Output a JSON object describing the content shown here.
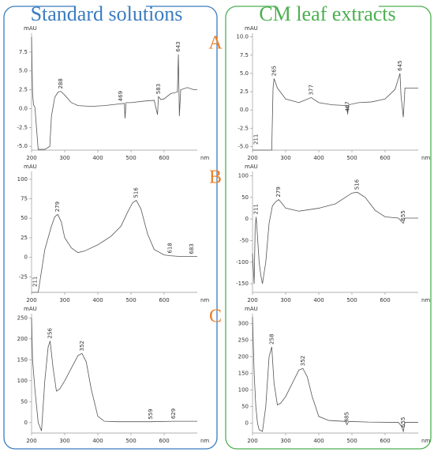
{
  "columns": [
    "Standard solutions",
    "CM leaf extracts"
  ],
  "rows": [
    "A",
    "B",
    "C"
  ],
  "chart_data": [
    {
      "type": "line",
      "y_label": "mAU",
      "x_label": "nm",
      "xlim": [
        200,
        700
      ],
      "ylim": [
        -5.5,
        10
      ],
      "xticks": [
        200,
        300,
        400,
        500,
        600
      ],
      "yticks": [
        {
          "value": -5,
          "label": "-5.0"
        },
        {
          "value": -2.5,
          "label": "-2.5"
        },
        {
          "value": 0,
          "label": "0.0"
        },
        {
          "value": 2.5,
          "label": "2.5"
        },
        {
          "value": 5,
          "label": "5.0"
        },
        {
          "value": 7.5,
          "label": "7.5"
        }
      ],
      "series": [
        {
          "color": "#555555",
          "x": [
            200,
            203,
            206,
            210,
            220,
            240,
            255,
            260,
            270,
            280,
            288,
            300,
            320,
            340,
            380,
            420,
            460,
            480,
            482,
            485,
            500,
            540,
            570,
            580,
            583,
            590,
            600,
            620,
            640,
            643,
            646,
            650,
            670,
            690,
            700
          ],
          "values": [
            9.5,
            2,
            0.5,
            0.2,
            -5.4,
            -5.4,
            -5,
            -1,
            1.5,
            2.2,
            2.3,
            1.8,
            0.8,
            0.4,
            0.3,
            0.4,
            0.6,
            0.7,
            -1.3,
            0.8,
            0.8,
            1,
            1.1,
            -0.8,
            1.6,
            1.2,
            1.3,
            2,
            2.2,
            7.2,
            -1,
            2.5,
            2.8,
            2.5,
            2.5
          ]
        }
      ],
      "peaks": [
        288,
        469,
        583,
        643
      ]
    },
    {
      "type": "line",
      "y_label": "mAU",
      "x_label": "nm",
      "xlim": [
        200,
        700
      ],
      "ylim": [
        -5.5,
        10.5
      ],
      "xticks": [
        200,
        300,
        400,
        500,
        600
      ],
      "yticks": [
        {
          "value": -5,
          "label": "-5.0"
        },
        {
          "value": -2.5,
          "label": "-2.5"
        },
        {
          "value": 0,
          "label": "0.0"
        },
        {
          "value": 2.5,
          "label": "2.5"
        },
        {
          "value": 5,
          "label": "5.0"
        },
        {
          "value": 7.5,
          "label": "7.5"
        },
        {
          "value": 10,
          "label": "10.0"
        }
      ],
      "series": [
        {
          "color": "#555555",
          "x": [
            200,
            205,
            211,
            230,
            258,
            262,
            265,
            275,
            300,
            340,
            377,
            400,
            440,
            485,
            487,
            490,
            520,
            560,
            600,
            630,
            645,
            648,
            655,
            660,
            680,
            700
          ],
          "values": [
            -5.5,
            -5.5,
            -5.5,
            -5.5,
            -5.5,
            3,
            4.3,
            3,
            1.5,
            1,
            1.7,
            1,
            0.7,
            0.6,
            -0.6,
            0.7,
            1,
            1.1,
            1.5,
            2.8,
            5,
            2,
            -1,
            3,
            3,
            3
          ]
        }
      ],
      "peaks": [
        211,
        265,
        377,
        487,
        645
      ]
    },
    {
      "type": "line",
      "y_label": "mAU",
      "x_label": "nm",
      "xlim": [
        200,
        700
      ],
      "ylim": [
        -45,
        110
      ],
      "xticks": [
        200,
        300,
        400,
        500,
        600
      ],
      "yticks": [
        -25,
        0,
        25,
        50,
        75,
        100
      ],
      "series": [
        {
          "color": "#555555",
          "x": [
            200,
            205,
            211,
            220,
            240,
            260,
            270,
            279,
            290,
            300,
            320,
            340,
            360,
            400,
            440,
            470,
            490,
            505,
            516,
            530,
            550,
            570,
            600,
            618,
            650,
            683,
            700
          ],
          "values": [
            -45,
            -45,
            -45,
            -45,
            10,
            40,
            52,
            55,
            45,
            25,
            12,
            6,
            8,
            16,
            27,
            40,
            58,
            70,
            73,
            62,
            30,
            10,
            3,
            2,
            1,
            1,
            1
          ]
        }
      ],
      "peaks": [
        211,
        279,
        516,
        618,
        683
      ]
    },
    {
      "type": "line",
      "y_label": "mAU",
      "x_label": "nm",
      "xlim": [
        200,
        700
      ],
      "ylim": [
        -170,
        110
      ],
      "xticks": [
        200,
        300,
        400,
        500,
        600
      ],
      "yticks": [
        -150,
        -100,
        -50,
        0,
        50,
        100
      ],
      "series": [
        {
          "color": "#555555",
          "x": [
            200,
            205,
            208,
            211,
            215,
            220,
            225,
            230,
            240,
            250,
            260,
            270,
            279,
            290,
            300,
            340,
            400,
            450,
            480,
            500,
            516,
            540,
            570,
            600,
            640,
            655,
            660,
            700
          ],
          "values": [
            -80,
            -150,
            -20,
            5,
            -40,
            -100,
            -130,
            -150,
            -100,
            -10,
            30,
            40,
            45,
            35,
            25,
            18,
            25,
            35,
            50,
            60,
            62,
            50,
            20,
            5,
            2,
            -10,
            2,
            2
          ]
        }
      ],
      "peaks": [
        211,
        279,
        516,
        655
      ]
    },
    {
      "type": "line",
      "y_label": "mAU",
      "x_label": "nm",
      "xlim": [
        200,
        700
      ],
      "ylim": [
        -25,
        260
      ],
      "xticks": [
        200,
        300,
        400,
        500,
        600
      ],
      "yticks": [
        0,
        50,
        100,
        150,
        200,
        250
      ],
      "series": [
        {
          "color": "#555555",
          "x": [
            200,
            203,
            206,
            210,
            220,
            230,
            240,
            250,
            256,
            265,
            275,
            285,
            300,
            320,
            340,
            352,
            365,
            380,
            400,
            420,
            460,
            559,
            629,
            700
          ],
          "values": [
            250,
            150,
            120,
            80,
            0,
            -20,
            100,
            180,
            195,
            130,
            75,
            80,
            100,
            130,
            160,
            165,
            145,
            80,
            15,
            3,
            2,
            2,
            3,
            3
          ]
        }
      ],
      "peaks": [
        256,
        352,
        559,
        629
      ]
    },
    {
      "type": "line",
      "y_label": "mAU",
      "x_label": "nm",
      "xlim": [
        200,
        700
      ],
      "ylim": [
        -30,
        330
      ],
      "xticks": [
        200,
        300,
        400,
        500,
        600
      ],
      "yticks": [
        0,
        50,
        100,
        150,
        200,
        250,
        300
      ],
      "series": [
        {
          "color": "#555555",
          "x": [
            200,
            205,
            210,
            215,
            220,
            230,
            240,
            250,
            258,
            265,
            275,
            285,
            300,
            320,
            340,
            352,
            365,
            380,
            400,
            430,
            480,
            485,
            490,
            550,
            640,
            650,
            655,
            660,
            700
          ],
          "values": [
            320,
            150,
            50,
            0,
            -20,
            -25,
            50,
            200,
            230,
            120,
            55,
            60,
            80,
            120,
            160,
            165,
            140,
            80,
            20,
            8,
            5,
            -5,
            5,
            3,
            2,
            -10,
            -25,
            2,
            2
          ]
        }
      ],
      "peaks": [
        258,
        352,
        485,
        655
      ]
    }
  ]
}
